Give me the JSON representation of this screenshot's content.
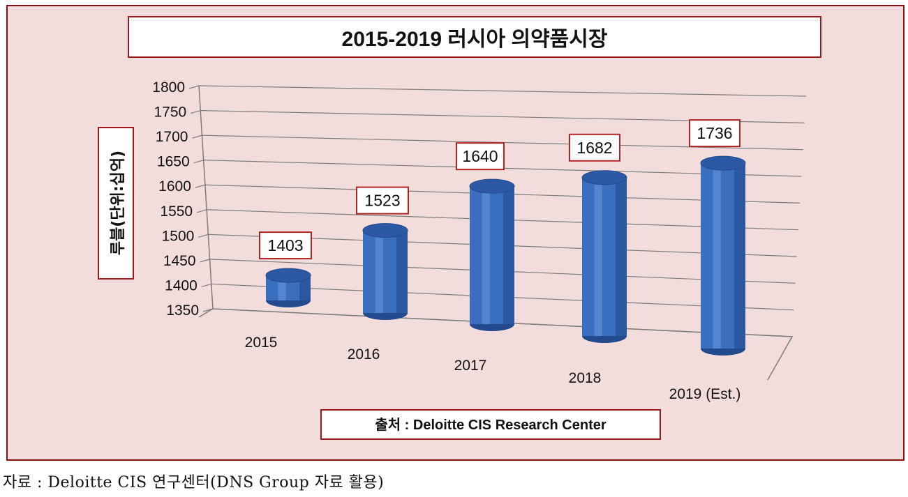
{
  "colors": {
    "panel_bg": "#f3dcdc",
    "panel_border": "#8b0f0f",
    "bar_fill": "#3a6fc0",
    "bar_top": "#2c58a4",
    "bar_edge": "#234a8c",
    "label_border": "#b22222",
    "grid_line": "#7c7c7c",
    "text": "#111111"
  },
  "chart_data": {
    "type": "bar",
    "style": "3d-cylinder",
    "title": "2015-2019 러시아 의약품시장",
    "ylabel": "루블(단위:십억)",
    "xlabel": "",
    "categories": [
      "2015",
      "2016",
      "2017",
      "2018",
      "2019 (Est.)"
    ],
    "values": [
      1403,
      1523,
      1640,
      1682,
      1736
    ],
    "data_labels": [
      "1403",
      "1523",
      "1640",
      "1682",
      "1736"
    ],
    "ylim": [
      1350,
      1800
    ],
    "yticks": [
      "1350",
      "1400",
      "1450",
      "1500",
      "1550",
      "1600",
      "1650",
      "1700",
      "1750",
      "1800"
    ],
    "grid": true,
    "legend": "none",
    "source_note": "출처 : Deloitte CIS Research Center"
  },
  "caption": "자료 : Deloitte CIS 연구센터(DNS Group 자료 활용)"
}
